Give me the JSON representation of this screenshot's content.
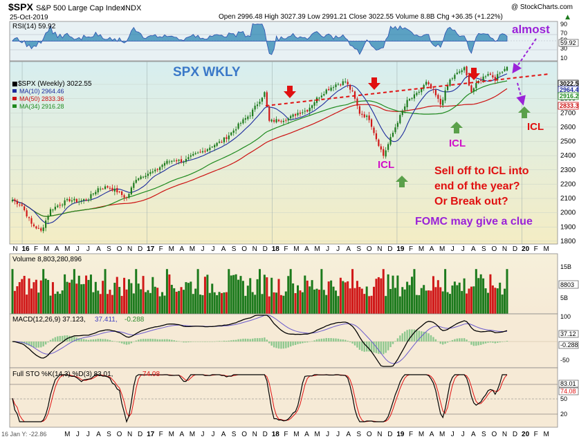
{
  "header": {
    "symbol": "$SPX",
    "name": "S&P 500 Large Cap Index",
    "exchange": "INDX",
    "date": "25-Oct-2019",
    "copyright": "@ StockCharts.com",
    "ohlc": "Open 2996.48  High 3027.39  Low 2991.21  Close 3022.55  Volume 8.8B  Chg +36.35 (+1.22%)",
    "ohlc_arrow": "▲"
  },
  "rsi": {
    "label": "RSI(14) 59.92",
    "ticks": [
      "90",
      "70",
      "50",
      "30",
      "10"
    ],
    "last_label": "59.92",
    "last": 59.92
  },
  "price": {
    "legend_title": "$SPX (Weekly) 3022.55",
    "legend": [
      {
        "label": "MA(10) 2964.46",
        "color": "#1c2b9c"
      },
      {
        "label": "MA(50) 2833.36",
        "color": "#cc1010"
      },
      {
        "label": "MA(34) 2916.28",
        "color": "#1e8a1e"
      }
    ],
    "ticks": [
      "2900",
      "2800",
      "2700",
      "2600",
      "2500",
      "2400",
      "2300",
      "2200",
      "2100",
      "2000",
      "1900",
      "1800"
    ],
    "last_labels": [
      "3022.5",
      "2964.4",
      "2916.2",
      "2833.3"
    ]
  },
  "volume": {
    "label": "Volume 8,803,280,896",
    "ticks": [
      "15B",
      "5B"
    ],
    "last_label": "8803"
  },
  "macd": {
    "label_a": "MACD(12,26,9) 37.123,",
    "label_b": "37.411,",
    "label_c": "-0.288",
    "ticks": [
      "100",
      "50",
      "-50"
    ],
    "last_labels": [
      "37.12",
      "-0.288"
    ]
  },
  "sto": {
    "label_a": "Full STO %K(14,3) %D(3) 83.01,",
    "label_b": "74.08",
    "ticks": [
      "80",
      "50",
      "20"
    ],
    "last_labels": [
      "83.01",
      "74.08"
    ]
  },
  "xaxis": {
    "labels": [
      "N",
      "16",
      "F",
      "M",
      "A",
      "M",
      "J",
      "J",
      "A",
      "S",
      "O",
      "N",
      "D",
      "17",
      "F",
      "M",
      "A",
      "M",
      "J",
      "J",
      "A",
      "S",
      "O",
      "N",
      "D",
      "18",
      "F",
      "M",
      "A",
      "M",
      "J",
      "J",
      "A",
      "S",
      "O",
      "N",
      "D",
      "19",
      "F",
      "M",
      "A",
      "M",
      "J",
      "J",
      "A",
      "S",
      "O",
      "N",
      "D",
      "20",
      "F",
      "M"
    ],
    "bottom_note": "16 Jan Y: -22.86"
  },
  "annotations": {
    "title": "SPX WKLY",
    "almost": "almost",
    "icl": "ICL",
    "question1": "Sell off to ICL into",
    "question2": "end of the year?",
    "question3": "Or Break out?",
    "fomc": "FOMC may give a clue"
  },
  "colors": {
    "price_bg_top": "#d7eef0",
    "price_bg_bottom": "#f4edc4",
    "up": "#1c7a1c",
    "down": "#d01818",
    "ma10": "#1c2b9c",
    "ma34": "#1e8a1e",
    "ma50": "#cc1010",
    "annotation_blue": "#3a78c8",
    "annotation_purple": "#9a22d8",
    "annotation_red": "#e01010",
    "annotation_magenta": "#d010c8",
    "arrow_green": "#5aa04a"
  },
  "chart_data": {
    "type": "candlestick",
    "title": "$SPX S&P 500 Large Cap Index INDX",
    "period": "Weekly",
    "x_range": [
      "Nov 2015",
      "Oct 2019"
    ],
    "ylim": [
      1780,
      3060
    ],
    "last": {
      "open": 2996.48,
      "high": 3027.39,
      "low": 2991.21,
      "close": 3022.55,
      "volume": 8803280896,
      "change": 36.35,
      "change_pct": 1.22
    },
    "anchors": [
      {
        "x": 0,
        "y": 2090
      },
      {
        "x": 4,
        "y": 2050
      },
      {
        "x": 8,
        "y": 1920
      },
      {
        "x": 12,
        "y": 1870
      },
      {
        "x": 16,
        "y": 2020
      },
      {
        "x": 20,
        "y": 2060
      },
      {
        "x": 24,
        "y": 2090
      },
      {
        "x": 28,
        "y": 2080
      },
      {
        "x": 32,
        "y": 2100
      },
      {
        "x": 36,
        "y": 2170
      },
      {
        "x": 40,
        "y": 2180
      },
      {
        "x": 44,
        "y": 2150
      },
      {
        "x": 48,
        "y": 2100
      },
      {
        "x": 52,
        "y": 2240
      },
      {
        "x": 56,
        "y": 2270
      },
      {
        "x": 60,
        "y": 2290
      },
      {
        "x": 64,
        "y": 2350
      },
      {
        "x": 68,
        "y": 2370
      },
      {
        "x": 72,
        "y": 2360
      },
      {
        "x": 76,
        "y": 2400
      },
      {
        "x": 80,
        "y": 2430
      },
      {
        "x": 84,
        "y": 2470
      },
      {
        "x": 88,
        "y": 2500
      },
      {
        "x": 92,
        "y": 2560
      },
      {
        "x": 96,
        "y": 2630
      },
      {
        "x": 100,
        "y": 2690
      },
      {
        "x": 104,
        "y": 2790
      },
      {
        "x": 106,
        "y": 2840
      },
      {
        "x": 108,
        "y": 2640
      },
      {
        "x": 112,
        "y": 2650
      },
      {
        "x": 116,
        "y": 2660
      },
      {
        "x": 120,
        "y": 2700
      },
      {
        "x": 124,
        "y": 2720
      },
      {
        "x": 128,
        "y": 2800
      },
      {
        "x": 132,
        "y": 2860
      },
      {
        "x": 136,
        "y": 2900
      },
      {
        "x": 140,
        "y": 2920
      },
      {
        "x": 143,
        "y": 2840
      },
      {
        "x": 146,
        "y": 2700
      },
      {
        "x": 150,
        "y": 2660
      },
      {
        "x": 153,
        "y": 2520
      },
      {
        "x": 156,
        "y": 2400
      },
      {
        "x": 158,
        "y": 2480
      },
      {
        "x": 162,
        "y": 2640
      },
      {
        "x": 166,
        "y": 2780
      },
      {
        "x": 170,
        "y": 2830
      },
      {
        "x": 174,
        "y": 2910
      },
      {
        "x": 177,
        "y": 2850
      },
      {
        "x": 180,
        "y": 2760
      },
      {
        "x": 184,
        "y": 2930
      },
      {
        "x": 188,
        "y": 2990
      },
      {
        "x": 190,
        "y": 3010
      },
      {
        "x": 193,
        "y": 2850
      },
      {
        "x": 196,
        "y": 2920
      },
      {
        "x": 200,
        "y": 2980
      },
      {
        "x": 203,
        "y": 2940
      },
      {
        "x": 206,
        "y": 3000
      },
      {
        "x": 208,
        "y": 3022
      }
    ]
  }
}
